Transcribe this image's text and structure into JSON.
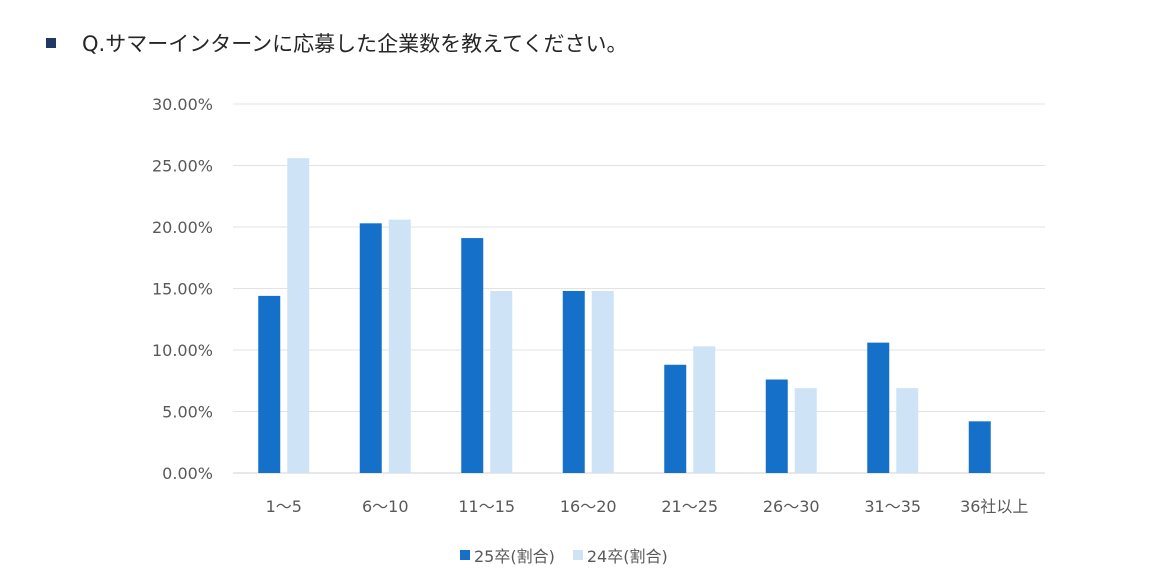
{
  "title": "Q.サマーインターンに応募した企業数を教えてください。",
  "chart_data": {
    "type": "bar",
    "categories": [
      "1～5",
      "6～10",
      "11～15",
      "16～20",
      "21～25",
      "26～30",
      "31～35",
      "36社以上"
    ],
    "series": [
      {
        "name": "25卒(割合)",
        "color": "#1570c9",
        "values": [
          14.4,
          20.3,
          19.1,
          14.8,
          8.8,
          7.6,
          10.6,
          4.2
        ]
      },
      {
        "name": "24卒(割合)",
        "color": "#cfe3f7",
        "values": [
          25.6,
          20.6,
          14.8,
          14.8,
          10.3,
          6.9,
          6.9,
          0
        ]
      }
    ],
    "yticks": [
      "0.00%",
      "5.00%",
      "10.00%",
      "15.00%",
      "20.00%",
      "25.00%",
      "30.00%"
    ],
    "ylim": [
      0,
      30
    ],
    "grid": true,
    "legend": "bottom"
  }
}
